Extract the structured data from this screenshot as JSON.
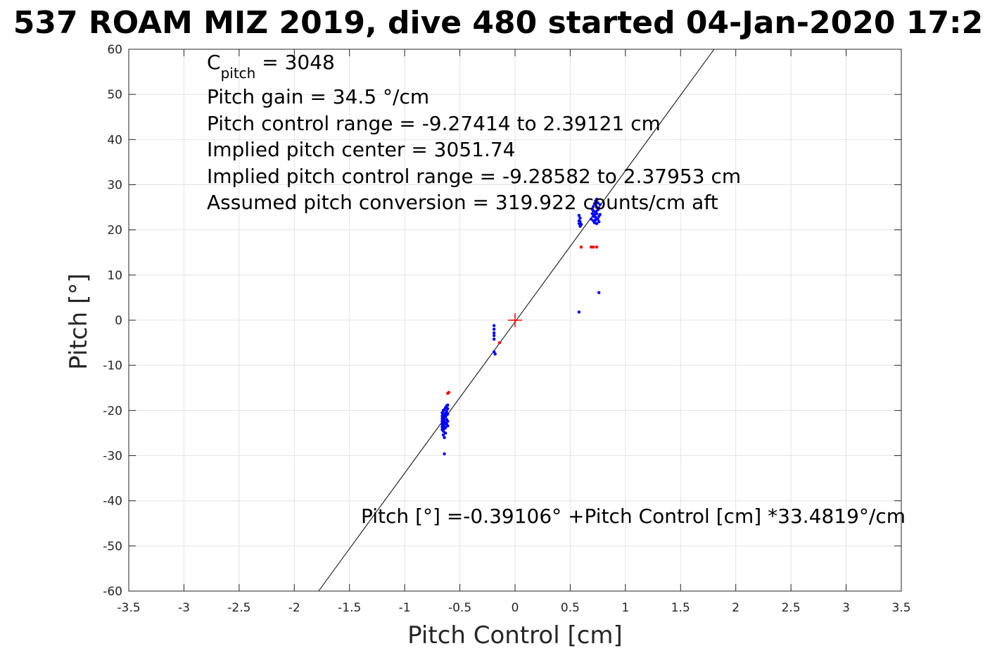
{
  "chart_data": {
    "type": "scatter",
    "title": "537 ROAM MIZ 2019, dive 480 started 04-Jan-2020 17:2",
    "xlabel": "Pitch Control [cm]",
    "ylabel": "Pitch [°]",
    "xlim": [
      -3.5,
      3.5
    ],
    "ylim": [
      -60,
      60
    ],
    "grid": true,
    "x_ticks": [
      -3.5,
      -3,
      -2.5,
      -2,
      -1.5,
      -1,
      -0.5,
      0,
      0.5,
      1,
      1.5,
      2,
      2.5,
      3,
      3.5
    ],
    "y_ticks": [
      -60,
      -50,
      -40,
      -30,
      -20,
      -10,
      0,
      10,
      20,
      30,
      40,
      50,
      60
    ],
    "x_tick_labels": [
      "-3.5",
      "-3",
      "-2.5",
      "-2",
      "-1.5",
      "-1",
      "-0.5",
      "0",
      "0.5",
      "1",
      "1.5",
      "2",
      "2.5",
      "3",
      "3.5"
    ],
    "y_tick_labels": [
      "-60",
      "-50",
      "-40",
      "-30",
      "-20",
      "-10",
      "0",
      "10",
      "20",
      "30",
      "40",
      "50",
      "60"
    ],
    "fit_line": {
      "intercept": -0.39106,
      "slope": 33.4819,
      "color": "#000000"
    },
    "center_marker": {
      "x": 0,
      "y": 0,
      "color": "#ff0000"
    },
    "series": [
      {
        "color": "#0000ff",
        "points": [
          [
            -0.66,
            -20.5
          ],
          [
            -0.66,
            -21.2
          ],
          [
            -0.66,
            -21.8
          ],
          [
            -0.66,
            -22.4
          ],
          [
            -0.66,
            -23.0
          ],
          [
            -0.66,
            -23.6
          ],
          [
            -0.66,
            -24.2
          ],
          [
            -0.65,
            -20.0
          ],
          [
            -0.65,
            -20.8
          ],
          [
            -0.65,
            -21.6
          ],
          [
            -0.65,
            -22.6
          ],
          [
            -0.65,
            -23.4
          ],
          [
            -0.65,
            -24.6
          ],
          [
            -0.65,
            -25.4
          ],
          [
            -0.64,
            -19.8
          ],
          [
            -0.64,
            -21.0
          ],
          [
            -0.64,
            -22.2
          ],
          [
            -0.64,
            -23.2
          ],
          [
            -0.64,
            -24.0
          ],
          [
            -0.64,
            -26.0
          ],
          [
            -0.64,
            -29.6
          ],
          [
            -0.63,
            -19.4
          ],
          [
            -0.63,
            -20.6
          ],
          [
            -0.63,
            -21.4
          ],
          [
            -0.63,
            -22.8
          ],
          [
            -0.63,
            -23.8
          ],
          [
            -0.63,
            -25.0
          ],
          [
            -0.62,
            -19.0
          ],
          [
            -0.62,
            -20.2
          ],
          [
            -0.62,
            -21.0
          ],
          [
            -0.62,
            -22.0
          ],
          [
            -0.62,
            -23.0
          ],
          [
            -0.61,
            -18.8
          ],
          [
            -0.61,
            -19.6
          ],
          [
            -0.61,
            -20.8
          ],
          [
            -0.61,
            -22.4
          ],
          [
            -0.61,
            -23.4
          ],
          [
            -0.19,
            -1.2
          ],
          [
            -0.19,
            -2.0
          ],
          [
            -0.19,
            -2.8
          ],
          [
            -0.19,
            -3.4
          ],
          [
            -0.19,
            -4.2
          ],
          [
            -0.19,
            -7.0
          ],
          [
            -0.18,
            -7.5
          ],
          [
            0.58,
            1.8
          ],
          [
            0.58,
            21.4
          ],
          [
            0.58,
            22.0
          ],
          [
            0.58,
            23.2
          ],
          [
            0.59,
            20.8
          ],
          [
            0.59,
            21.8
          ],
          [
            0.59,
            22.6
          ],
          [
            0.6,
            21.2
          ],
          [
            0.69,
            22.4
          ],
          [
            0.7,
            23.6
          ],
          [
            0.7,
            24.6
          ],
          [
            0.71,
            22.0
          ],
          [
            0.71,
            23.0
          ],
          [
            0.71,
            24.2
          ],
          [
            0.71,
            25.2
          ],
          [
            0.72,
            21.6
          ],
          [
            0.72,
            23.4
          ],
          [
            0.72,
            25.8
          ],
          [
            0.73,
            22.2
          ],
          [
            0.73,
            24.0
          ],
          [
            0.73,
            26.4
          ],
          [
            0.73,
            22.8
          ],
          [
            0.74,
            21.4
          ],
          [
            0.74,
            23.6
          ],
          [
            0.74,
            25.0
          ],
          [
            0.74,
            26.8
          ],
          [
            0.75,
            22.4
          ],
          [
            0.75,
            24.4
          ],
          [
            0.75,
            26.0
          ],
          [
            0.76,
            21.8
          ],
          [
            0.76,
            23.0
          ],
          [
            0.76,
            24.8
          ],
          [
            0.76,
            6.1
          ],
          [
            0.77,
            23.4
          ],
          [
            0.77,
            25.6
          ]
        ]
      },
      {
        "color": "#ff0000",
        "points": [
          [
            -0.61,
            -16.2
          ],
          [
            -0.6,
            -16.0
          ],
          [
            -0.14,
            -5.0
          ],
          [
            0.6,
            16.2
          ],
          [
            0.69,
            16.2
          ],
          [
            0.71,
            16.2
          ],
          [
            0.74,
            16.2
          ]
        ]
      }
    ]
  },
  "annotations": {
    "c_pitch_main": "C",
    "c_pitch_sub": "pitch",
    "c_pitch_value": " = 3048",
    "pitch_gain": "Pitch gain = 34.5 °/cm",
    "pitch_control_range": "Pitch control range = -9.27414 to 2.39121 cm",
    "implied_center": "Implied pitch center = 3051.74",
    "implied_range": "Implied pitch control range = -9.28582 to 2.37953 cm",
    "assumed_conversion": "Assumed pitch conversion = 319.922 counts/cm aft",
    "fit_equation": "Pitch [°] =-0.39106° +Pitch Control [cm] *33.4819°/cm"
  }
}
